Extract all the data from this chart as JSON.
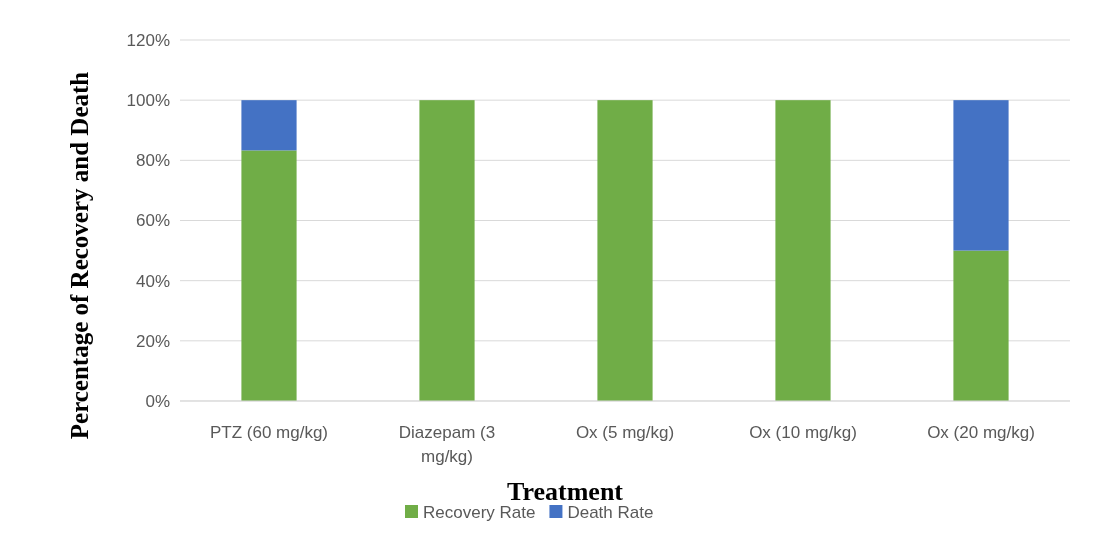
{
  "chart_data": {
    "type": "bar",
    "stacked": true,
    "xlabel": "Treatment",
    "ylabel": "Percentage of Recovery and Death",
    "categories": [
      "PTZ (60 mg/kg)",
      "Diazepam (3 mg/kg)",
      "Ox (5 mg/kg)",
      "Ox (10 mg/kg)",
      "Ox (20 mg/kg)"
    ],
    "series": [
      {
        "name": "Recovery Rate",
        "color": "#70ad47",
        "values": [
          83.3,
          100,
          100,
          100,
          50
        ]
      },
      {
        "name": "Death Rate",
        "color": "#4472c4",
        "values": [
          16.7,
          0,
          0,
          0,
          50
        ]
      }
    ],
    "ylim": [
      0,
      120
    ],
    "yticks": [
      {
        "value": 0,
        "label": "0%"
      },
      {
        "value": 20,
        "label": "20%"
      },
      {
        "value": 40,
        "label": "40%"
      },
      {
        "value": 60,
        "label": "60%"
      },
      {
        "value": 80,
        "label": "80%"
      },
      {
        "value": 100,
        "label": "100%"
      },
      {
        "value": 120,
        "label": "120%"
      }
    ],
    "grid": "y",
    "legend": "bottom"
  }
}
